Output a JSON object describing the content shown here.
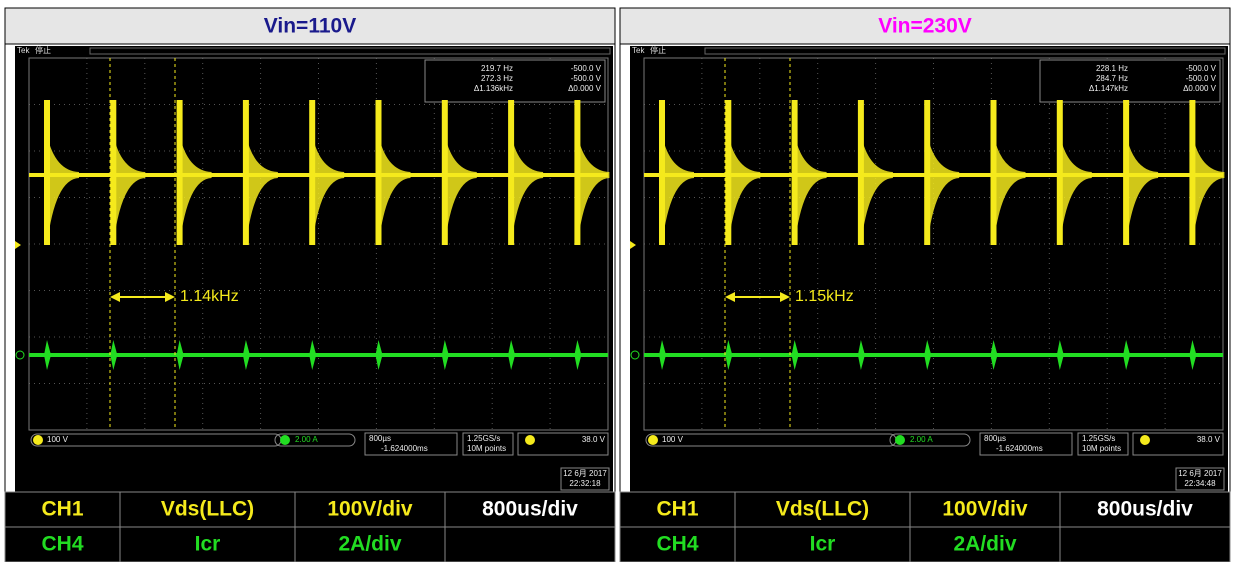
{
  "panels": [
    {
      "title": "Vin=110V",
      "scope": {
        "brand": "Tek",
        "status": "停止",
        "cursor_freq": [
          "219.7 Hz",
          "272.3 Hz",
          "Δ1.136kHz"
        ],
        "cursor_volts": [
          "-500.0 V",
          "-500.0 V",
          "Δ0.000 V"
        ],
        "annotation": "1.14kHz",
        "ch1_scale": "100 V",
        "ch4_scale": "2.00 A",
        "timebase": "800µs",
        "trigger_pos": "-1.624000ms",
        "sample_rate": "1.25GS/s",
        "record_length": "10M points",
        "trigger_level": "38.0 V",
        "date": "12 6月 2017",
        "time": "22:32:18"
      },
      "table": {
        "rows": [
          [
            "CH1",
            "Vds(LLC)",
            "100V/div",
            "800us/div"
          ],
          [
            "CH4",
            "Icr",
            "2A/div"
          ]
        ]
      }
    },
    {
      "title": "Vin=230V",
      "scope": {
        "brand": "Tek",
        "status": "停止",
        "cursor_freq": [
          "228.1 Hz",
          "284.7 Hz",
          "Δ1.147kHz"
        ],
        "cursor_volts": [
          "-500.0 V",
          "-500.0 V",
          "Δ0.000 V"
        ],
        "annotation": "1.15kHz",
        "ch1_scale": "100 V",
        "ch4_scale": "2.00 A",
        "timebase": "800µs",
        "trigger_pos": "-1.624000ms",
        "sample_rate": "1.25GS/s",
        "record_length": "10M points",
        "trigger_level": "38.0 V",
        "date": "12 6月 2017",
        "time": "22:34:48"
      },
      "table": {
        "rows": [
          [
            "CH1",
            "Vds(LLC)",
            "100V/div",
            "800us/div"
          ],
          [
            "CH4",
            "Icr",
            "2A/div"
          ]
        ]
      }
    }
  ]
}
